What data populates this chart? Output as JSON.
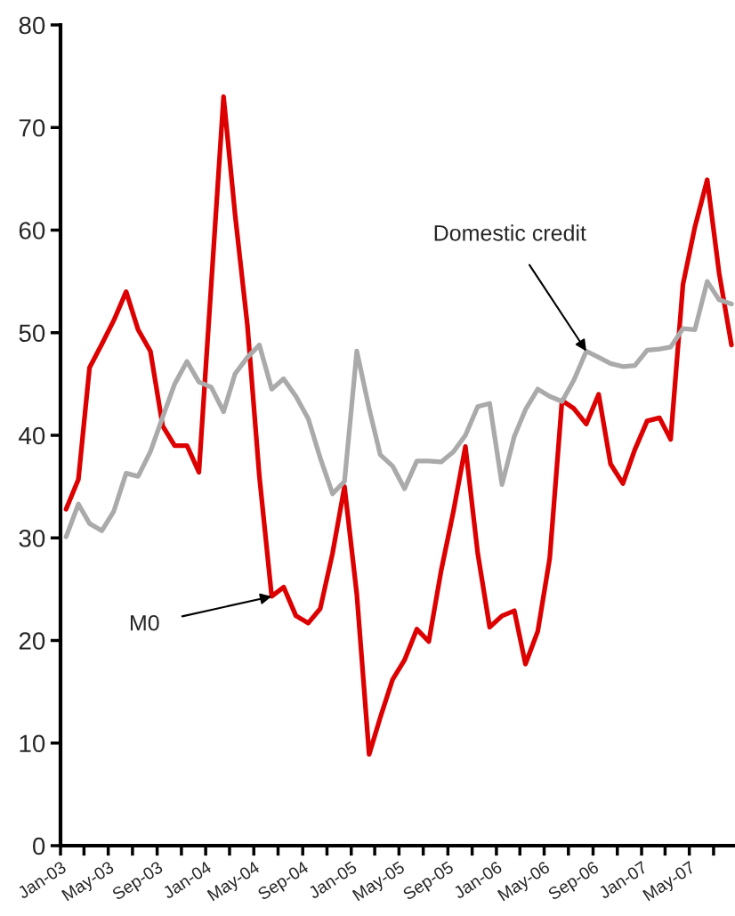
{
  "chart_data": {
    "type": "line",
    "x": [
      "2003-01-15",
      "2003-02-15",
      "2003-03-15",
      "2003-04-15",
      "2003-05-15",
      "2003-06-15",
      "2003-07-15",
      "2003-08-15",
      "2003-09-15",
      "2003-10-15",
      "2003-11-15",
      "2003-12-15",
      "2004-01-15",
      "2004-02-15",
      "2004-03-15",
      "2004-04-15",
      "2004-05-15",
      "2004-06-15",
      "2004-07-15",
      "2004-08-15",
      "2004-09-15",
      "2004-10-15",
      "2004-11-15",
      "2004-12-15",
      "2005-01-15",
      "2005-02-15",
      "2005-03-15",
      "2005-04-15",
      "2005-05-15",
      "2005-06-15",
      "2005-07-15",
      "2005-08-15",
      "2005-09-15",
      "2005-10-15",
      "2005-11-15",
      "2005-12-15",
      "2006-01-15",
      "2006-02-15",
      "2006-03-15",
      "2006-04-15",
      "2006-05-15",
      "2006-06-15",
      "2006-07-15",
      "2006-08-15",
      "2006-09-15",
      "2006-10-15",
      "2006-11-15",
      "2006-12-15",
      "2007-01-15",
      "2007-02-15",
      "2007-03-15",
      "2007-04-15",
      "2007-05-15",
      "2007-06-15",
      "2007-07-15",
      "2007-08-15"
    ],
    "series": [
      {
        "color": "#dd0000",
        "values": [
          32.8,
          35.7,
          46.6,
          48.9,
          51.2,
          54.0,
          50.3,
          48.2,
          40.9,
          39.0,
          39.0,
          36.4,
          54.7,
          73.0,
          61.5,
          50.7,
          36.0,
          24.3,
          25.2,
          22.4,
          21.7,
          23.1,
          28.5,
          35.0,
          24.5,
          8.9,
          12.5,
          16.2,
          18.1,
          21.1,
          19.9,
          26.8,
          32.6,
          38.9,
          28.5,
          21.3,
          22.4,
          22.9,
          17.7,
          20.9,
          28.0,
          43.4,
          42.6,
          41.1,
          44.0,
          37.2,
          35.3,
          38.6,
          41.4,
          41.7,
          39.6,
          54.7,
          60.3,
          64.9,
          55.8,
          48.8
        ]
      },
      {
        "color": "#aaaaaa",
        "values": [
          30.1,
          33.3,
          31.4,
          30.7,
          32.6,
          36.3,
          36.0,
          38.4,
          41.8,
          45.0,
          47.2,
          45.2,
          44.7,
          42.3,
          46.0,
          47.6,
          48.8,
          44.5,
          45.5,
          43.8,
          41.6,
          37.8,
          34.3,
          35.5,
          48.2,
          42.6,
          38.1,
          37.0,
          34.8,
          37.5,
          37.5,
          37.4,
          38.4,
          40.0,
          42.8,
          43.1,
          35.2,
          39.9,
          42.5,
          44.5,
          43.8,
          43.3,
          45.4,
          48.2,
          47.6,
          47.0,
          46.7,
          46.8,
          48.3,
          48.4,
          48.6,
          50.4,
          50.3,
          55.0,
          53.2,
          52.8
        ]
      }
    ],
    "annotations": [
      {
        "text": "M0",
        "x": "2004-06-15",
        "y": 24.3
      },
      {
        "text": "Domestic credit",
        "x": "2006-08-15",
        "y": 48.2
      }
    ],
    "xlim": [
      "2003-01-01",
      "2007-08-22"
    ],
    "xticks": [
      {
        "value": "2003-01-01",
        "label": "Jan-03"
      },
      {
        "value": "2003-03-01",
        "label": null
      },
      {
        "value": "2003-05-01",
        "label": "May-03"
      },
      {
        "value": "2003-07-01",
        "label": null
      },
      {
        "value": "2003-09-01",
        "label": "Sep-03"
      },
      {
        "value": "2003-11-01",
        "label": null
      },
      {
        "value": "2004-01-01",
        "label": "Jan-04"
      },
      {
        "value": "2004-03-01",
        "label": null
      },
      {
        "value": "2004-05-01",
        "label": "May-04"
      },
      {
        "value": "2004-07-01",
        "label": null
      },
      {
        "value": "2004-09-01",
        "label": "Sep-04"
      },
      {
        "value": "2004-11-01",
        "label": null
      },
      {
        "value": "2005-01-01",
        "label": "Jan-05"
      },
      {
        "value": "2005-03-01",
        "label": null
      },
      {
        "value": "2005-05-01",
        "label": "May-05"
      },
      {
        "value": "2005-07-01",
        "label": null
      },
      {
        "value": "2005-09-01",
        "label": "Sep-05"
      },
      {
        "value": "2005-11-01",
        "label": null
      },
      {
        "value": "2006-01-01",
        "label": "Jan-06"
      },
      {
        "value": "2006-03-01",
        "label": null
      },
      {
        "value": "2006-05-01",
        "label": "May-06"
      },
      {
        "value": "2006-07-01",
        "label": null
      },
      {
        "value": "2006-09-01",
        "label": "Sep-06"
      },
      {
        "value": "2006-11-01",
        "label": null
      },
      {
        "value": "2007-01-01",
        "label": "Jan-07"
      },
      {
        "value": "2007-03-01",
        "label": null
      },
      {
        "value": "2007-05-01",
        "label": "May-07"
      },
      {
        "value": "2007-07-01",
        "label": null
      }
    ],
    "ylim": [
      0,
      80
    ],
    "yticks": [
      0,
      10,
      20,
      30,
      40,
      50,
      60,
      70,
      80
    ],
    "grid": false,
    "marker": "none",
    "line_style": "solid"
  }
}
